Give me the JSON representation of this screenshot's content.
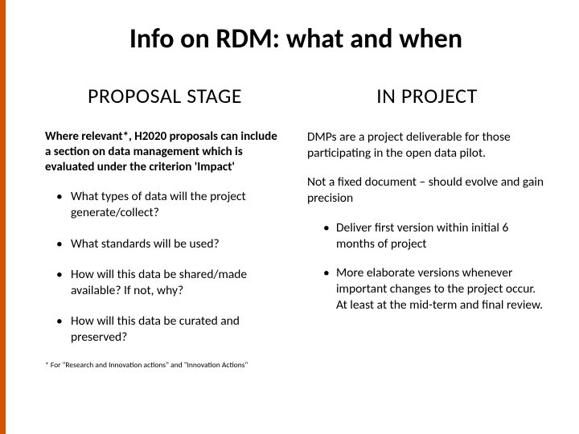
{
  "accent_color": "#d35400",
  "title": "Info on RDM: what and when",
  "left": {
    "heading": "PROPOSAL STAGE",
    "intro": "Where relevant*, H2020 proposals can include a section on data management which is evaluated under the criterion 'Impact'",
    "bullets": [
      "What types of data will the project generate/collect?",
      "What standards will be used?",
      "How will this data be shared/made available? If not, why?",
      "How will this data be curated and preserved?"
    ],
    "footnote": "* For \"Research and Innovation actions\" and \"Innovation Actions\""
  },
  "right": {
    "heading": "IN PROJECT",
    "para1": "DMPs are a project deliverable for those participating in the open data pilot.",
    "para2": "Not a fixed document – should evolve and gain precision",
    "bullets": [
      "Deliver first version within initial 6 months of project",
      "More elaborate versions whenever important changes to the project occur. At least at the mid-term and final review."
    ]
  }
}
